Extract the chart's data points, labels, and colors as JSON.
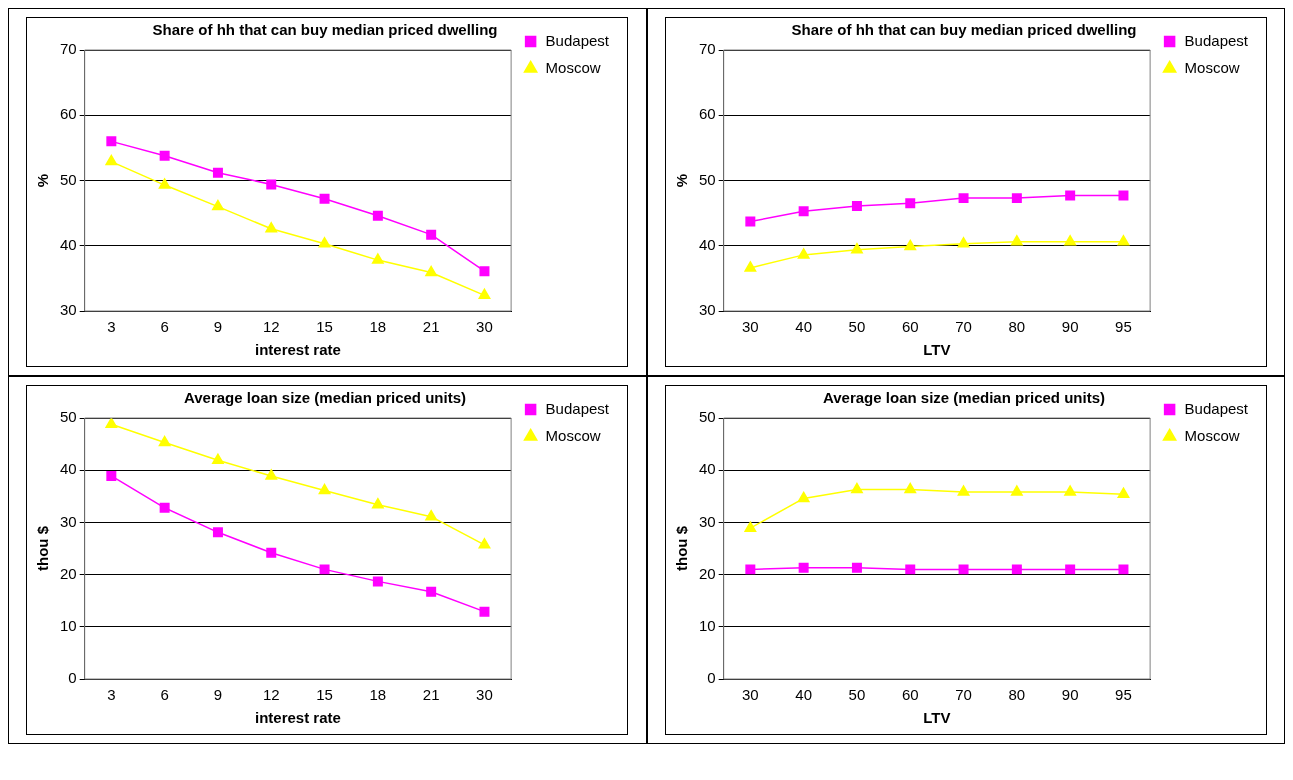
{
  "chart_data": [
    {
      "type": "line",
      "title": "Share of hh that can buy median priced dwelling",
      "xlabel": "interest rate",
      "ylabel": "%",
      "categories": [
        "3",
        "6",
        "9",
        "12",
        "15",
        "18",
        "21",
        "30"
      ],
      "series": [
        {
          "name": "Budapest",
          "color": "#ff00ff",
          "marker": "square",
          "values": [
            56,
            53.8,
            51.2,
            49.4,
            47.2,
            44.6,
            41.7,
            36.1
          ]
        },
        {
          "name": "Moscow",
          "color": "#ffff00",
          "marker": "triangle",
          "values": [
            52.9,
            49.3,
            46,
            42.6,
            40.3,
            37.8,
            35.9,
            32.4
          ]
        }
      ],
      "ylim": [
        30,
        70
      ],
      "yticks": [
        30,
        40,
        50,
        60,
        70
      ],
      "grid": "y",
      "legend": "top right"
    },
    {
      "type": "line",
      "title": "Share of hh that can buy median priced dwelling",
      "xlabel": "LTV",
      "ylabel": "%",
      "categories": [
        "30",
        "40",
        "50",
        "60",
        "70",
        "80",
        "90",
        "95"
      ],
      "series": [
        {
          "name": "Budapest",
          "color": "#ff00ff",
          "marker": "square",
          "values": [
            43.7,
            45.3,
            46.1,
            46.5,
            47.3,
            47.3,
            47.7,
            47.7
          ]
        },
        {
          "name": "Moscow",
          "color": "#ffff00",
          "marker": "triangle",
          "values": [
            36.6,
            38.6,
            39.4,
            39.9,
            40.3,
            40.6,
            40.6,
            40.6
          ]
        }
      ],
      "ylim": [
        30,
        70
      ],
      "yticks": [
        30,
        40,
        50,
        60,
        70
      ],
      "grid": "y",
      "legend": "top right"
    },
    {
      "type": "line",
      "title": "Average loan size (median priced units)",
      "xlabel": "interest rate",
      "ylabel": "thou $",
      "categories": [
        "3",
        "6",
        "9",
        "12",
        "15",
        "18",
        "21",
        "30"
      ],
      "series": [
        {
          "name": "Budapest",
          "color": "#ff00ff",
          "marker": "square",
          "values": [
            38.9,
            32.8,
            28.1,
            24.2,
            21,
            18.7,
            16.7,
            12.9
          ]
        },
        {
          "name": "Moscow",
          "color": "#ffff00",
          "marker": "triangle",
          "values": [
            48.8,
            45.3,
            41.9,
            38.9,
            36.1,
            33.4,
            31.1,
            25.7
          ]
        }
      ],
      "ylim": [
        0,
        50
      ],
      "yticks": [
        0,
        10,
        20,
        30,
        40,
        50
      ],
      "grid": "y",
      "legend": "top right"
    },
    {
      "type": "line",
      "title": "Average loan size (median priced units)",
      "xlabel": "LTV",
      "ylabel": "thou $",
      "categories": [
        "30",
        "40",
        "50",
        "60",
        "70",
        "80",
        "90",
        "95"
      ],
      "series": [
        {
          "name": "Budapest",
          "color": "#ff00ff",
          "marker": "square",
          "values": [
            21,
            21.3,
            21.3,
            21,
            21,
            21,
            21,
            21
          ]
        },
        {
          "name": "Moscow",
          "color": "#ffff00",
          "marker": "triangle",
          "values": [
            28.9,
            34.6,
            36.3,
            36.3,
            35.8,
            35.8,
            35.8,
            35.4
          ]
        }
      ],
      "ylim": [
        0,
        50
      ],
      "yticks": [
        0,
        10,
        20,
        30,
        40,
        50
      ],
      "grid": "y",
      "legend": "top right"
    }
  ]
}
